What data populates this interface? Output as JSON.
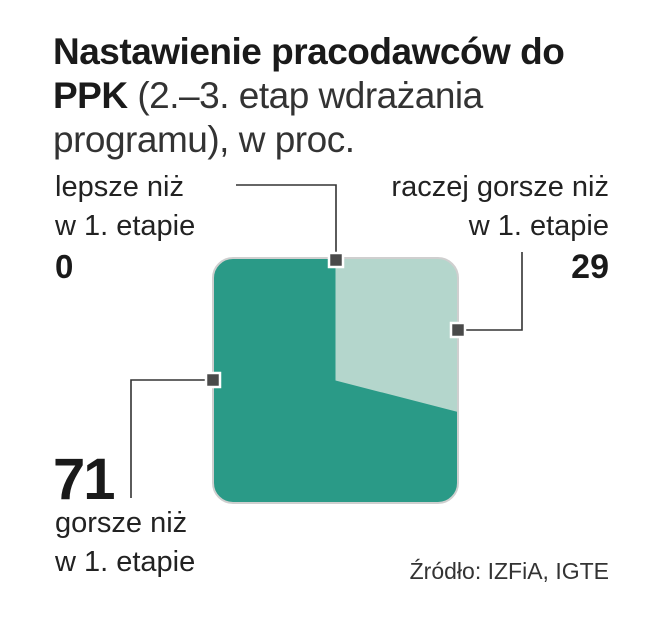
{
  "title": {
    "bold": "Nastawienie pracodawców do PPK",
    "light": "(2.–3. etap wdrażania programu), w proc."
  },
  "source": "Źródło: IZFiA, IGTE",
  "colors": {
    "worse": "#2a9a87",
    "rather_worse": "#b4d6cc",
    "better": "#ffffff",
    "leader": "#333333",
    "marker": "#4a4a4a"
  },
  "chart_data": {
    "type": "pie",
    "title": "Nastawienie pracodawców do PPK (2.–3. etap wdrażania programu), w proc.",
    "categories": [
      "lepsze niż w 1. etapie",
      "raczej gorsze niż w 1. etapie",
      "gorsze niż w 1. etapie"
    ],
    "values": [
      0,
      29,
      71
    ],
    "labels": {
      "better": {
        "line1": "lepsze niż",
        "line2": "w 1. etapie",
        "value": "0"
      },
      "rather_worse": {
        "line1": "raczej gorsze niż",
        "line2": "w 1. etapie",
        "value": "29"
      },
      "worse": {
        "line1": "gorsze niż",
        "line2": "w 1. etapie",
        "value": "71"
      }
    }
  }
}
